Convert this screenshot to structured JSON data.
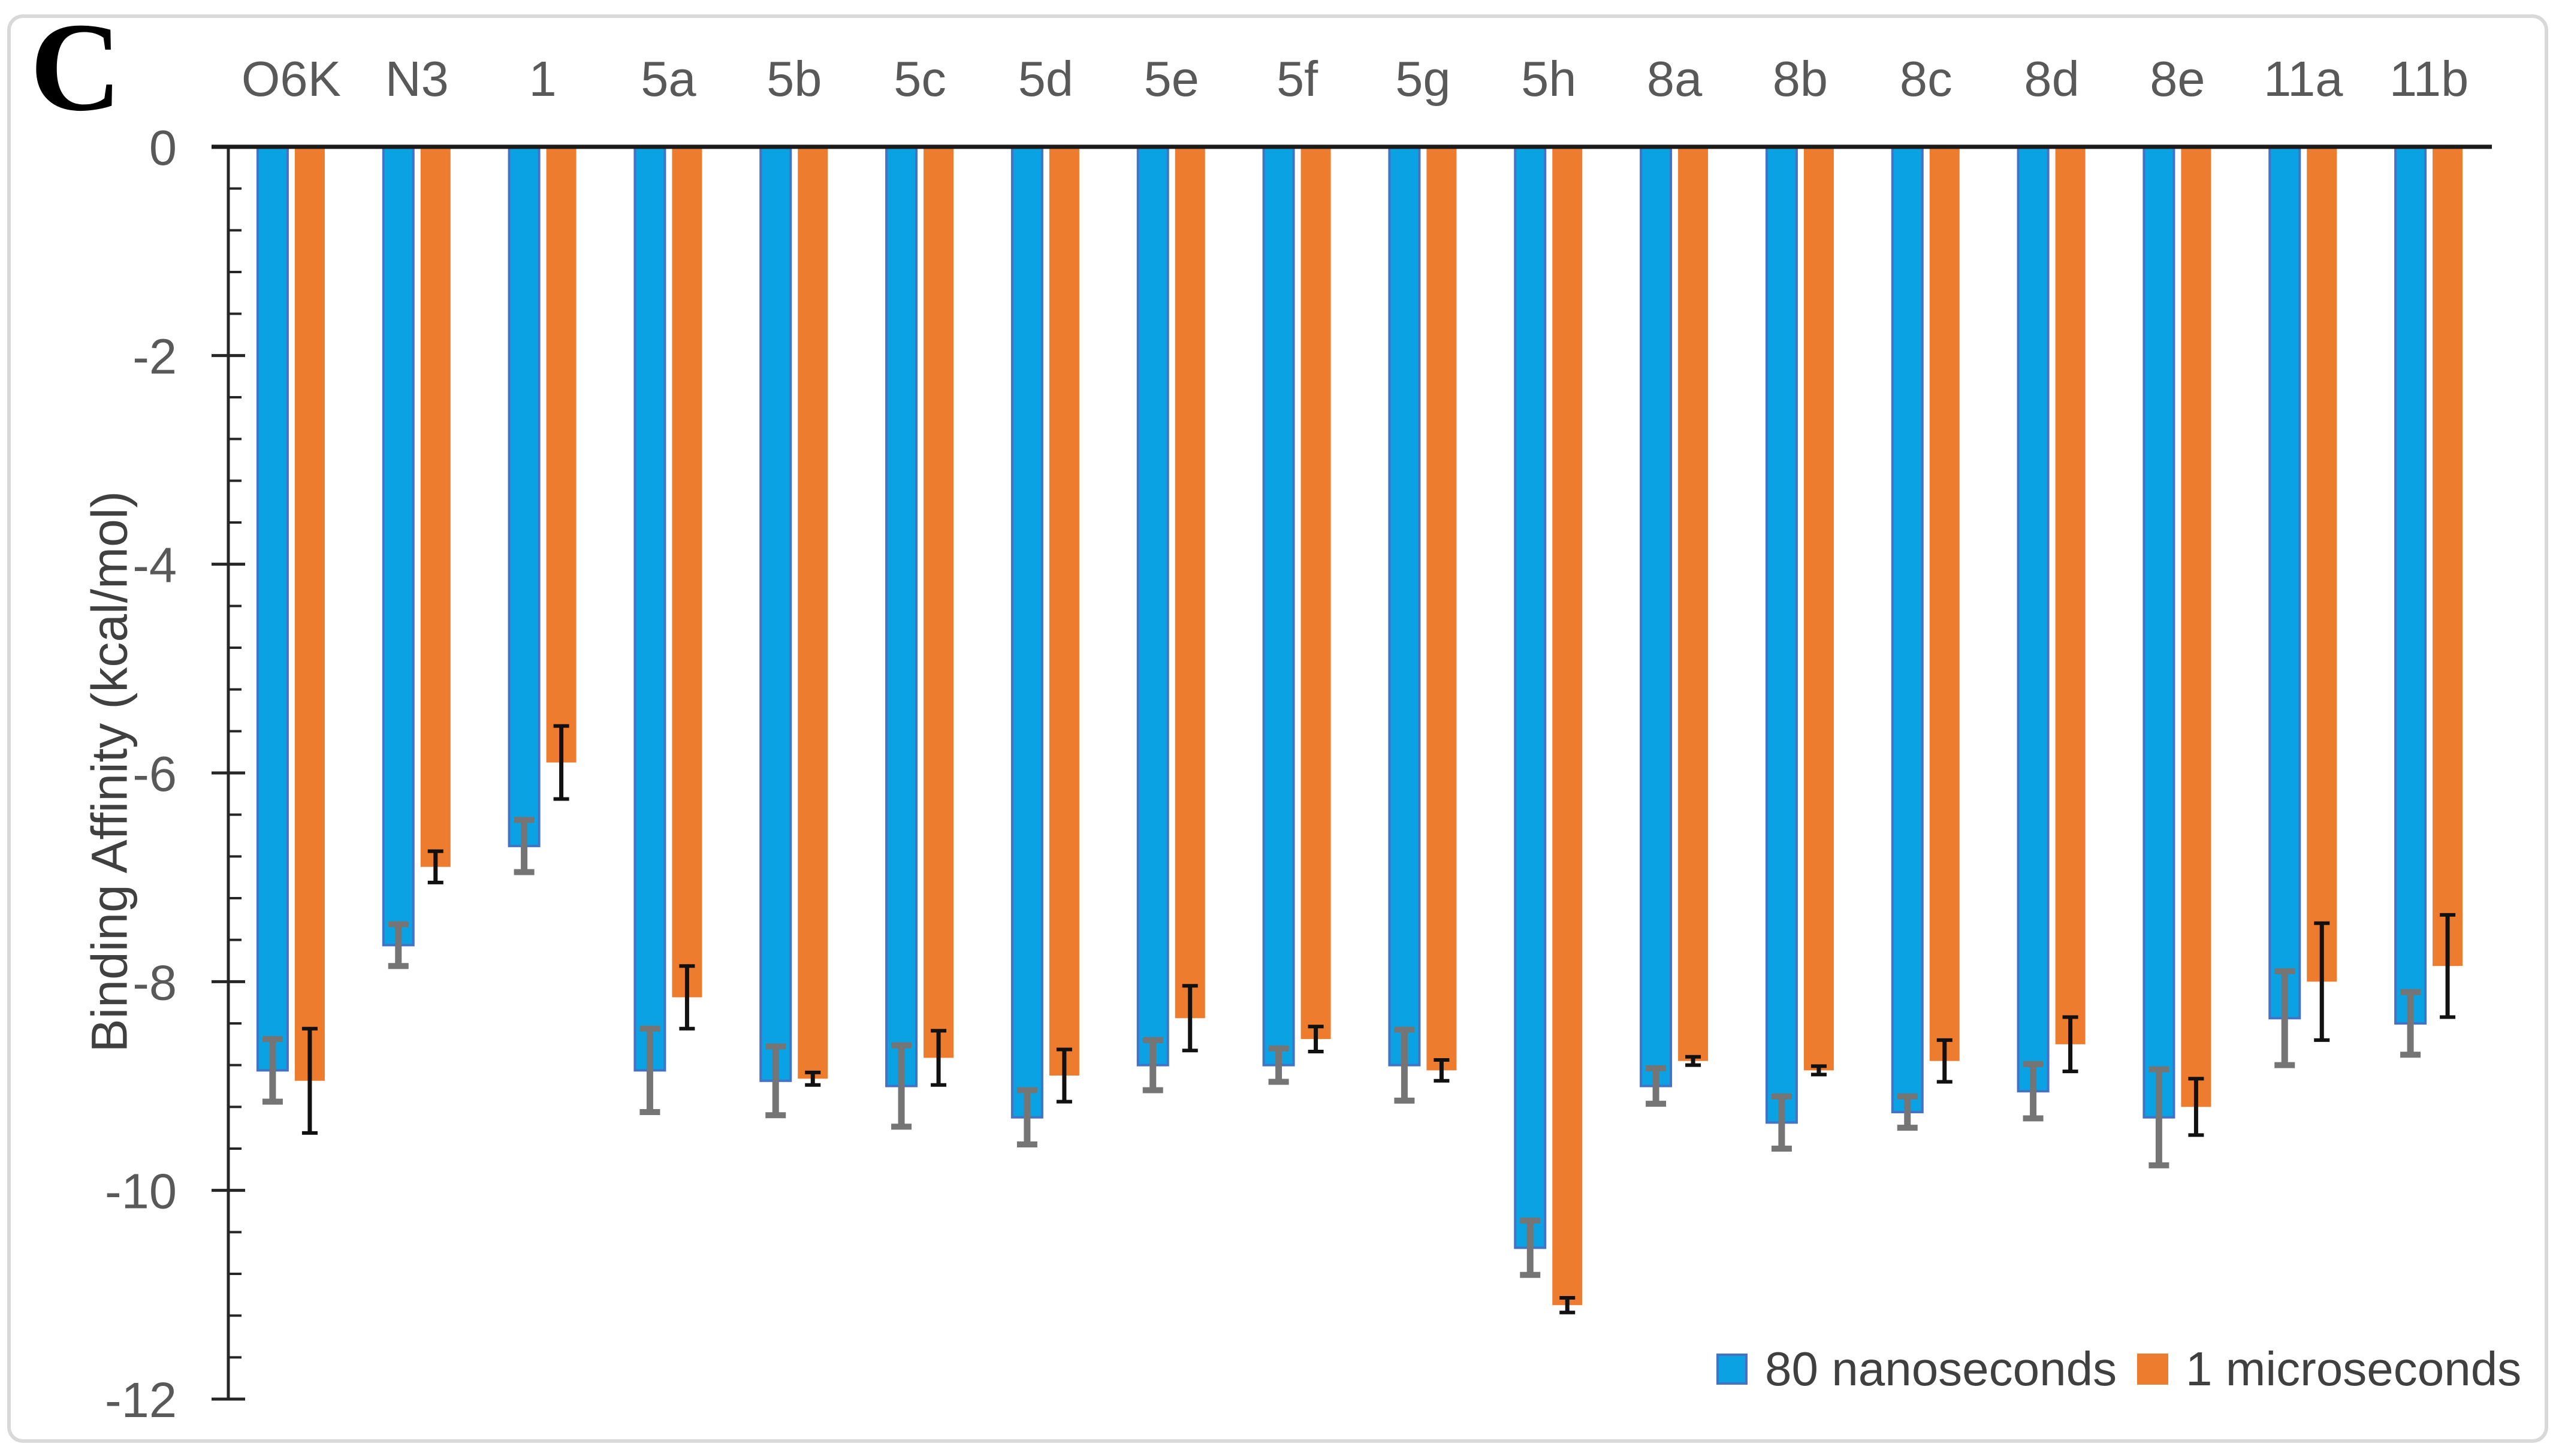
{
  "panel_label": "C",
  "axis": {
    "y_title": "Binding Affinity (kcal/mol)",
    "y_ticks": [
      0,
      -2,
      -4,
      -6,
      -8,
      -10,
      -12
    ],
    "y_tick_labels": [
      "0",
      "-2",
      "-4",
      "-6",
      "-8",
      "-10",
      "-12"
    ],
    "minor_tick_step": 0.4
  },
  "legend": {
    "position": "bottom-right-inside",
    "items": [
      {
        "label": "80 nanoseconds",
        "color": "#0BA2E3"
      },
      {
        "label": "1 microseconds",
        "color": "#ED7C2F"
      }
    ]
  },
  "chart_data": {
    "type": "bar",
    "title": "",
    "xlabel": "",
    "ylabel": "Binding Affinity (kcal/mol)",
    "ylim": [
      -12,
      0
    ],
    "grid": false,
    "legend_position": "bottom-right inside plot",
    "categories": [
      "O6K",
      "N3",
      "1",
      "5a",
      "5b",
      "5c",
      "5d",
      "5e",
      "5f",
      "5g",
      "5h",
      "8a",
      "8b",
      "8c",
      "8d",
      "8e",
      "11a",
      "11b"
    ],
    "series": [
      {
        "name": "80 nanoseconds",
        "color": "#0BA2E3",
        "border_color": "#4472C4",
        "error_color": "#757575",
        "values": [
          -8.85,
          -7.65,
          -6.7,
          -8.85,
          -8.95,
          -9.0,
          -9.3,
          -8.8,
          -8.8,
          -8.8,
          -10.55,
          -9.0,
          -9.35,
          -9.25,
          -9.05,
          -9.3,
          -8.35,
          -8.4
        ],
        "errors": [
          0.3,
          0.2,
          0.25,
          0.4,
          0.33,
          0.39,
          0.26,
          0.24,
          0.16,
          0.34,
          0.26,
          0.17,
          0.25,
          0.15,
          0.26,
          0.46,
          0.45,
          0.3
        ]
      },
      {
        "name": "1 microseconds",
        "color": "#ED7C2F",
        "border_color": "#ED7C2F",
        "error_color": "#111111",
        "values": [
          -8.95,
          -6.9,
          -5.9,
          -8.15,
          -8.93,
          -8.73,
          -8.9,
          -8.35,
          -8.55,
          -8.85,
          -11.1,
          -8.76,
          -8.85,
          -8.76,
          -8.6,
          -9.2,
          -8.0,
          -7.85
        ],
        "errors": [
          0.5,
          0.15,
          0.35,
          0.3,
          0.06,
          0.26,
          0.25,
          0.31,
          0.12,
          0.1,
          0.07,
          0.04,
          0.04,
          0.2,
          0.26,
          0.27,
          0.56,
          0.49
        ]
      }
    ]
  },
  "colors": {
    "axis_line": "#262626",
    "zero_line": "#1A1A1A",
    "tick_label": "#595959",
    "category_label": "#595959",
    "text_dark": "#404040",
    "figure_border": "#D9D9D9",
    "background": "#FFFFFF"
  }
}
